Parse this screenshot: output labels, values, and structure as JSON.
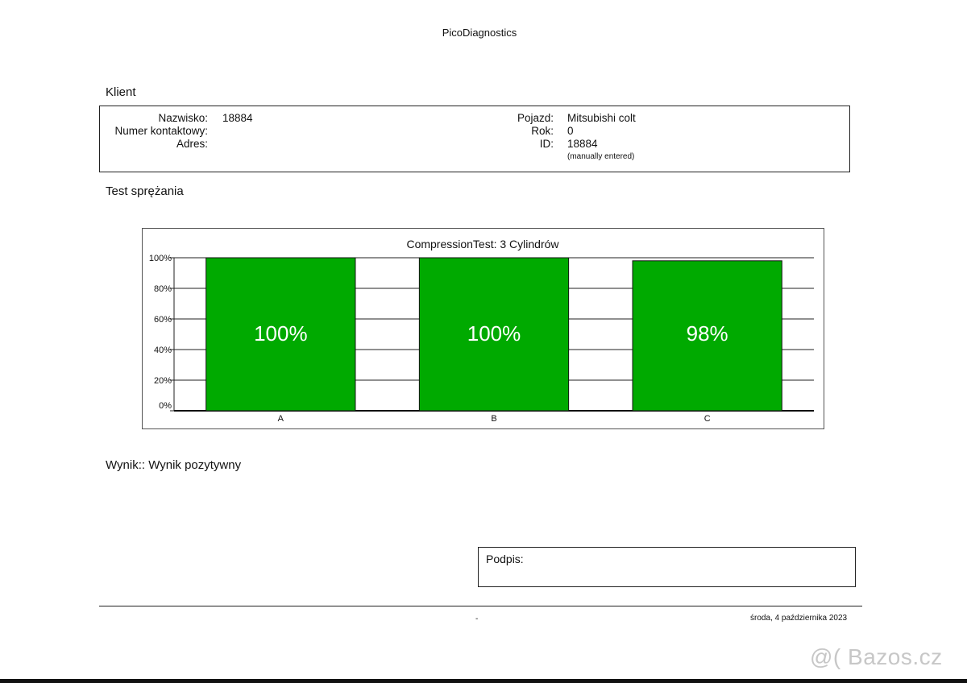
{
  "header": {
    "title": "PicoDiagnostics"
  },
  "client": {
    "section_title": "Klient",
    "left": [
      {
        "label": "Nazwisko:",
        "value": "18884"
      },
      {
        "label": "Numer kontaktowy:",
        "value": ""
      },
      {
        "label": "Adres:",
        "value": ""
      }
    ],
    "right": [
      {
        "label": "Pojazd:",
        "value": "Mitsubishi colt"
      },
      {
        "label": "Rok:",
        "value": "0"
      },
      {
        "label": "ID:",
        "value": "18884"
      }
    ],
    "id_note": "(manually entered)"
  },
  "test": {
    "section_title": "Test sprężania"
  },
  "chart_data": {
    "type": "bar",
    "title": "CompressionTest: 3 Cylindrów",
    "categories": [
      "A",
      "B",
      "C"
    ],
    "values": [
      100,
      100,
      98
    ],
    "value_labels": [
      "100%",
      "100%",
      "98%"
    ],
    "ylim": [
      0,
      100
    ],
    "y_ticks": [
      "0%",
      "20%",
      "40%",
      "60%",
      "80%",
      "100%"
    ],
    "xlabel": "",
    "ylabel": "",
    "grid": true,
    "bar_color": "#00aa00"
  },
  "result": {
    "text": "Wynik:: Wynik pozytywny"
  },
  "signature": {
    "label": "Podpis:"
  },
  "footer": {
    "dash": "-",
    "date": "środa, 4 października 2023"
  },
  "watermark": {
    "text": "@( Bazos.cz"
  }
}
